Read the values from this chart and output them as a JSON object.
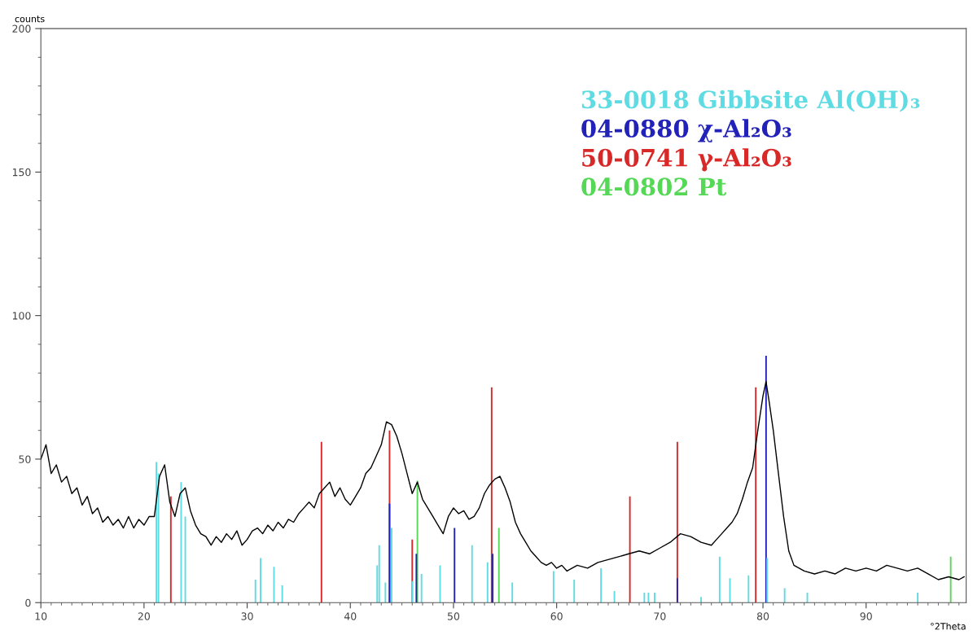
{
  "chart_data": {
    "type": "line",
    "xlabel": "°2Theta",
    "ylabel": "counts",
    "xlim": [
      10,
      99.7
    ],
    "ylim": [
      0,
      200
    ],
    "xticks": [
      10,
      20,
      30,
      40,
      50,
      60,
      70,
      80,
      90
    ],
    "yticks": [
      0,
      50,
      100,
      150,
      200
    ],
    "grid": false,
    "legend": "top right",
    "marker": "none",
    "line_style": "solid",
    "series": [
      {
        "color": "#000000",
        "x": [
          10,
          10.5,
          11,
          11.5,
          12,
          12.5,
          13,
          13.5,
          14,
          14.5,
          15,
          15.5,
          16,
          16.5,
          17,
          17.5,
          18,
          18.5,
          19,
          19.5,
          20,
          20.5,
          21,
          21.5,
          22,
          22.5,
          23,
          23.5,
          24,
          24.5,
          25,
          25.5,
          26,
          26.5,
          27,
          27.5,
          28,
          28.5,
          29,
          29.5,
          30,
          30.5,
          31,
          31.5,
          32,
          32.5,
          33,
          33.5,
          34,
          34.5,
          35,
          35.5,
          36,
          36.5,
          37,
          37.5,
          38,
          38.5,
          39,
          39.5,
          40,
          40.5,
          41,
          41.5,
          42,
          42.5,
          43,
          43.5,
          44,
          44.5,
          45,
          45.5,
          46,
          46.5,
          47,
          47.5,
          48,
          48.5,
          49,
          49.5,
          50,
          50.5,
          51,
          51.5,
          52,
          52.5,
          53,
          53.5,
          54,
          54.5,
          55,
          55.5,
          56,
          56.5,
          57,
          57.5,
          58,
          58.5,
          59,
          59.5,
          60,
          60.5,
          61,
          62,
          63,
          64,
          65,
          66,
          67,
          68,
          69,
          70,
          71,
          72,
          73,
          74,
          75,
          75.5,
          76,
          76.5,
          77,
          77.5,
          78,
          78.5,
          79,
          79.5,
          80,
          80.3,
          80.6,
          81,
          81.5,
          82,
          82.5,
          83,
          84,
          85,
          86,
          87,
          88,
          89,
          90,
          91,
          92,
          93,
          94,
          95,
          96,
          97,
          98,
          99,
          99.5
        ],
        "values": [
          50,
          55,
          45,
          48,
          42,
          44,
          38,
          40,
          34,
          37,
          31,
          33,
          28,
          30,
          27,
          29,
          26,
          30,
          26,
          29,
          27,
          30,
          30,
          44,
          48,
          35,
          30,
          38,
          40,
          32,
          27,
          24,
          23,
          20,
          23,
          21,
          24,
          22,
          25,
          20,
          22,
          25,
          26,
          24,
          27,
          25,
          28,
          26,
          29,
          28,
          31,
          33,
          35,
          33,
          38,
          40,
          42,
          37,
          40,
          36,
          34,
          37,
          40,
          45,
          47,
          51,
          55,
          63,
          62,
          58,
          52,
          45,
          38,
          42,
          36,
          33,
          30,
          27,
          24,
          30,
          33,
          31,
          32,
          29,
          30,
          33,
          38,
          41,
          43,
          44,
          40,
          35,
          28,
          24,
          21,
          18,
          16,
          14,
          13,
          14,
          12,
          13,
          11,
          13,
          12,
          14,
          15,
          16,
          17,
          18,
          17,
          19,
          21,
          24,
          23,
          21,
          20,
          22,
          24,
          26,
          28,
          31,
          36,
          42,
          47,
          60,
          72,
          77,
          70,
          60,
          45,
          30,
          18,
          13,
          11,
          10,
          11,
          10,
          12,
          11,
          12,
          11,
          13,
          12,
          11,
          12,
          10,
          8,
          9,
          8,
          9
        ]
      },
      {
        "type": "bar",
        "name": "33-0018 Gibbsite Al(OH)₃",
        "color": "#5edbe3",
        "x": [
          21.2,
          21.4,
          23.6,
          24.0,
          30.8,
          31.3,
          32.6,
          33.4,
          42.6,
          42.8,
          43.4,
          44.0,
          46.0,
          46.9,
          48.7,
          51.8,
          53.3,
          55.7,
          59.7,
          61.7,
          64.3,
          65.6,
          68.5,
          68.9,
          69.5,
          74.0,
          75.8,
          76.8,
          78.6,
          80.4,
          82.1,
          84.3,
          95.0
        ],
        "values": [
          49,
          45,
          42,
          30,
          8,
          15.5,
          12.5,
          6,
          13,
          20,
          7,
          26,
          7.5,
          10,
          13,
          20,
          14,
          7,
          11,
          8,
          12,
          4,
          3.5,
          3.5,
          3.5,
          2,
          16,
          8.5,
          9.5,
          15.5,
          5,
          3.5,
          3.5
        ]
      },
      {
        "type": "bar",
        "name": "04-0880 χ-Al₂O₃",
        "color": "#2222b8",
        "x": [
          43.8,
          46.4,
          50.1,
          53.8,
          71.7,
          80.3
        ],
        "values": [
          34.5,
          17,
          26,
          17,
          8.5,
          86
        ]
      },
      {
        "type": "bar",
        "name": "50-0741 γ-Al₂O₃",
        "color": "#d82828",
        "x": [
          22.6,
          37.2,
          43.8,
          46.0,
          53.7,
          67.1,
          71.7,
          79.3
        ],
        "values": [
          37,
          56,
          60,
          22,
          75,
          37,
          56,
          75
        ]
      },
      {
        "type": "bar",
        "name": "04-0802 Pt",
        "color": "#55d855",
        "x": [
          46.5,
          54.4,
          98.2
        ],
        "values": [
          42.5,
          26,
          16
        ]
      }
    ]
  }
}
